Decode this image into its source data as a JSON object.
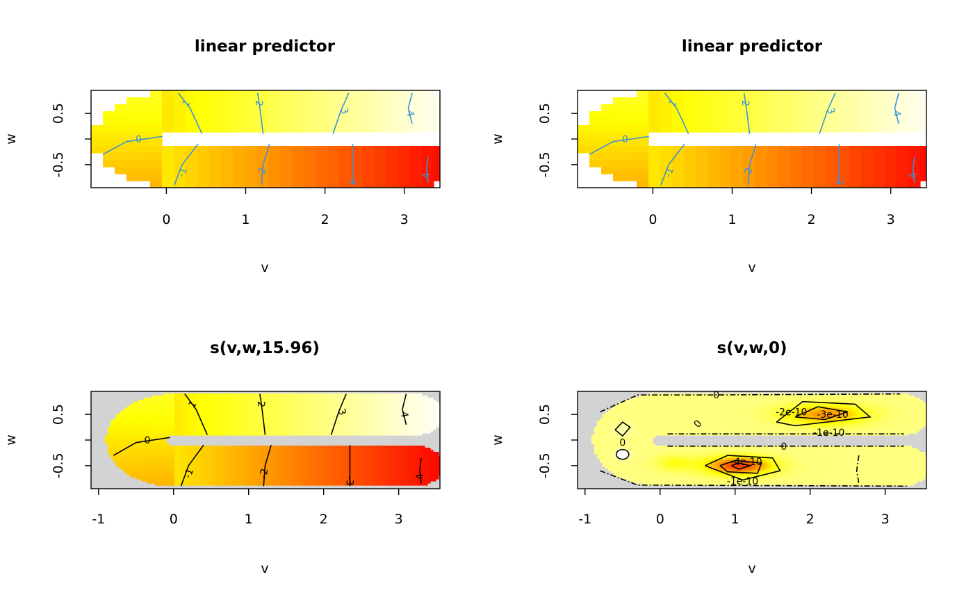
{
  "colors": {
    "background": "#ffffff",
    "outside_domain": "#d3d3d3",
    "heat_low": "#ff0000",
    "heat_mid": "#ffff00",
    "heat_high": "#ffffff",
    "contour_blue": "#3a93d9",
    "contour_black": "#000000"
  },
  "chart_data": [
    {
      "type": "heatmap",
      "title": "linear predictor",
      "xlabel": "v",
      "ylabel": "w",
      "xlim": [
        -0.95,
        3.45
      ],
      "ylim": [
        -0.95,
        0.95
      ],
      "xticks": [
        "0",
        "1",
        "2",
        "3"
      ],
      "yticks": [
        "-0.5",
        "0.5"
      ],
      "colormap": "heat (red-yellow-white)",
      "pixelated": true,
      "outside_fill": "white",
      "contour_color": "blue",
      "contour_levels": [
        "-1",
        "-2",
        "-3",
        "-4",
        "0",
        "1",
        "2",
        "3",
        "4"
      ],
      "value_range": [
        -4,
        4
      ]
    },
    {
      "type": "heatmap",
      "title": "linear predictor",
      "xlabel": "v",
      "ylabel": "w",
      "xlim": [
        -0.95,
        3.45
      ],
      "ylim": [
        -0.95,
        0.95
      ],
      "xticks": [
        "0",
        "1",
        "2",
        "3"
      ],
      "yticks": [
        "-0.5",
        "0.5"
      ],
      "colormap": "heat (red-yellow-white)",
      "pixelated": true,
      "outside_fill": "white",
      "contour_color": "blue",
      "contour_levels": [
        "-1",
        "-2",
        "-3",
        "-4",
        "0",
        "1",
        "2",
        "3",
        "4"
      ],
      "value_range": [
        -4,
        4
      ]
    },
    {
      "type": "heatmap",
      "title": "s(v,w,15.96)",
      "xlabel": "v",
      "ylabel": "w",
      "xlim": [
        -1.1,
        3.55
      ],
      "ylim": [
        -0.95,
        0.95
      ],
      "xticks": [
        "-1",
        "0",
        "1",
        "2",
        "3"
      ],
      "yticks": [
        "-0.5",
        "0.5"
      ],
      "colormap": "heat (red-yellow-white)",
      "pixelated": false,
      "outside_fill": "grey",
      "contour_color": "black",
      "contour_levels": [
        "-1",
        "-2",
        "-3",
        "-4",
        "0",
        "1",
        "2",
        "3",
        "4"
      ],
      "value_range": [
        -4,
        4
      ]
    },
    {
      "type": "heatmap",
      "title": "s(v,w,0)",
      "xlabel": "v",
      "ylabel": "w",
      "xlim": [
        -1.1,
        3.55
      ],
      "ylim": [
        -0.95,
        0.95
      ],
      "xticks": [
        "-1",
        "0",
        "1",
        "2",
        "3"
      ],
      "yticks": [
        "-0.5",
        "0.5"
      ],
      "colormap": "heat (red-yellow-white)",
      "pixelated": false,
      "outside_fill": "grey",
      "contour_color": "black",
      "contour_levels": [
        "0",
        "0",
        "0",
        "0",
        "-2e-10",
        "-3e-10",
        "-1e-10",
        "-4e-10",
        "-1e-10"
      ],
      "value_range": [
        -4.5e-10,
        1e-10
      ]
    }
  ]
}
